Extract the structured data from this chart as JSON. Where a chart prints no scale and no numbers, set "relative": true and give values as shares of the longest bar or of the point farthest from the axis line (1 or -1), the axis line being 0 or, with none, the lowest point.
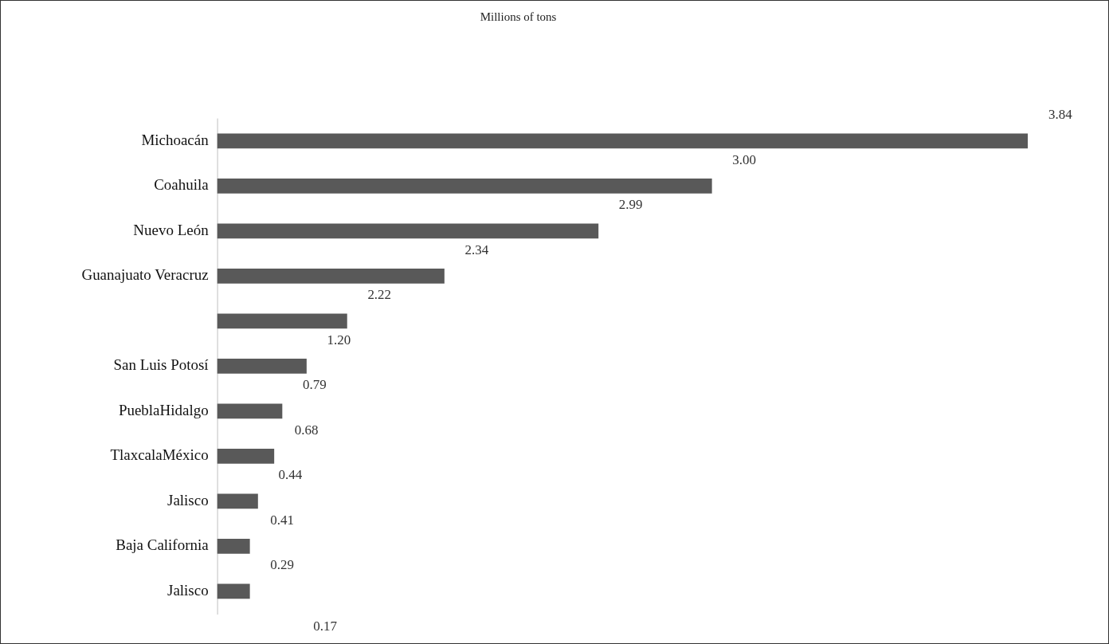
{
  "chart_data": {
    "type": "bar",
    "orientation": "horizontal",
    "relative": true,
    "title": "Millions of tons",
    "categories": [
      "Michoacán",
      "Coahuila",
      "Nuevo León",
      "Guanajuato Veracruz",
      null,
      "San Luis Potosí",
      "PueblaHidalgo",
      "TlaxcalaMéxico",
      "Jalisco",
      "Baja California",
      "Jalisco"
    ],
    "values": [
      1,
      0.61,
      0.47,
      0.28,
      0.16,
      0.11,
      0.08,
      0.07,
      0.05,
      0.04,
      0.04
    ],
    "color": "#595959",
    "annotations": [
      "3.84",
      "3.00",
      "2.99",
      "2.34",
      "2.22",
      "1.20",
      "0.79",
      "0.68",
      "0.44",
      "0.41",
      "0.29",
      "0.17"
    ],
    "legend": false
  }
}
